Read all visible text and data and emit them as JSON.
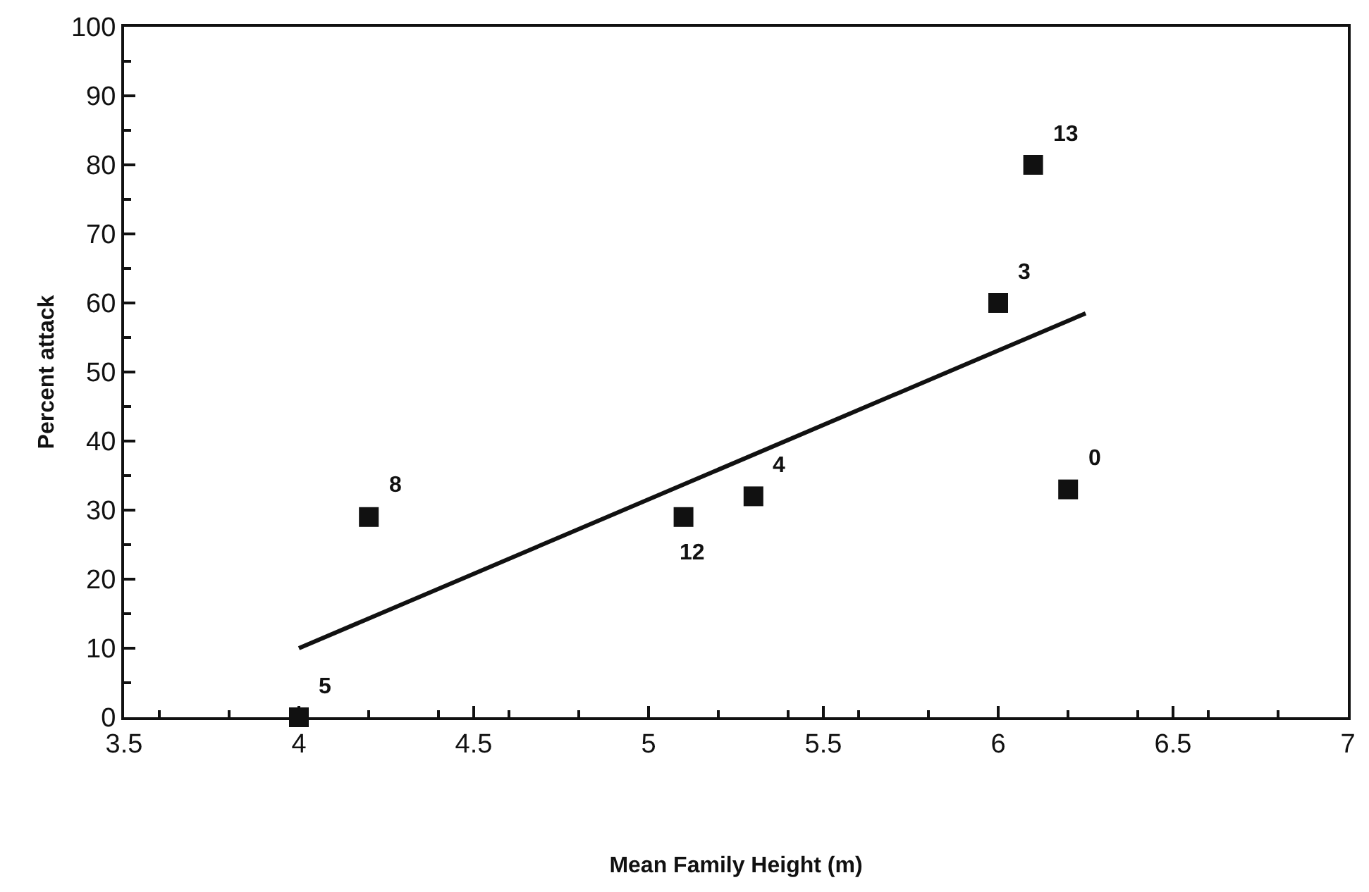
{
  "chart_data": {
    "type": "scatter",
    "xlabel": "Mean Family Height (m)",
    "ylabel": "Percent attack",
    "xlim": [
      3.5,
      7
    ],
    "xticks": [
      3.5,
      4,
      4.5,
      5,
      5.5,
      6,
      6.5,
      7
    ],
    "ylim": [
      0,
      100
    ],
    "yticks": [
      0,
      10,
      20,
      30,
      40,
      50,
      60,
      70,
      80,
      90,
      100
    ],
    "marker": "square",
    "series": [
      {
        "color": "#111111",
        "x": [
          4,
          4.2,
          5.1,
          5.3,
          6,
          6.1,
          6.2
        ],
        "values": [
          0,
          29,
          29,
          32,
          60,
          80,
          33
        ]
      },
      {
        "type": "line",
        "color": "#111111",
        "marker": "none",
        "line_style": "solid",
        "x": [
          4,
          6.25
        ],
        "values": [
          10,
          58.5
        ]
      }
    ],
    "annotations": [
      {
        "text": "5",
        "x": 4,
        "y": 0
      },
      {
        "text": "8",
        "x": 4.2,
        "y": 29
      },
      {
        "text": "12",
        "x": 5.1,
        "y": 29
      },
      {
        "text": "4",
        "x": 5.3,
        "y": 32
      },
      {
        "text": "3",
        "x": 6,
        "y": 60
      },
      {
        "text": "13",
        "x": 6.1,
        "y": 80
      },
      {
        "text": "0",
        "x": 6.2,
        "y": 33
      }
    ]
  }
}
